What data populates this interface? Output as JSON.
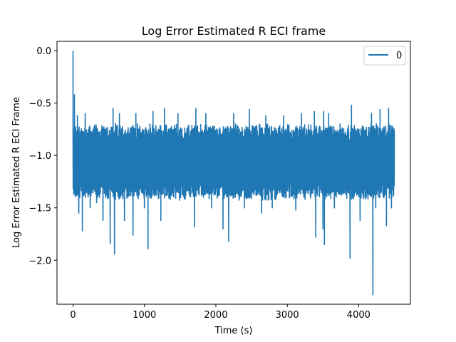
{
  "chart_data": {
    "type": "line",
    "title": "Log Error Estimated R ECI frame",
    "xlabel": "Time (s)",
    "ylabel": "Log Error Estimated R ECI Frame",
    "xlim": [
      -225,
      4725
    ],
    "ylim": [
      -2.42,
      0.09
    ],
    "xticks": [
      0,
      1000,
      2000,
      3000,
      4000
    ],
    "xtick_labels": [
      "0",
      "1000",
      "2000",
      "3000",
      "4000"
    ],
    "yticks": [
      0.0,
      -0.5,
      -1.0,
      -1.5,
      -2.0
    ],
    "ytick_labels": [
      "0.0",
      "−0.5",
      "−1.0",
      "−1.5",
      "−2.0"
    ],
    "grid": false,
    "legend": "top-right",
    "color": "#1f77b4",
    "series": [
      {
        "name": "0",
        "x_start": 0,
        "x_end": 4500,
        "band_low_typical": -1.4,
        "band_high_typical": -0.72,
        "points": [
          [
            0,
            0.0
          ],
          [
            10,
            -1.0
          ],
          [
            20,
            -0.42
          ],
          [
            30,
            -1.3
          ],
          [
            60,
            -0.62
          ],
          [
            80,
            -1.55
          ],
          [
            130,
            -1.72
          ],
          [
            170,
            -0.6
          ],
          [
            240,
            -1.5
          ],
          [
            330,
            -1.45
          ],
          [
            420,
            -1.62
          ],
          [
            520,
            -1.84
          ],
          [
            560,
            -0.55
          ],
          [
            580,
            -1.94
          ],
          [
            650,
            -0.6
          ],
          [
            720,
            -1.62
          ],
          [
            840,
            -1.76
          ],
          [
            880,
            -0.6
          ],
          [
            1000,
            -1.5
          ],
          [
            1050,
            -1.89
          ],
          [
            1120,
            -0.58
          ],
          [
            1230,
            -1.62
          ],
          [
            1280,
            -0.55
          ],
          [
            1470,
            -0.6
          ],
          [
            1700,
            -1.68
          ],
          [
            1720,
            -0.55
          ],
          [
            1860,
            -0.6
          ],
          [
            1940,
            -1.5
          ],
          [
            2100,
            -1.7
          ],
          [
            2180,
            -1.82
          ],
          [
            2250,
            -0.6
          ],
          [
            2400,
            -1.5
          ],
          [
            2470,
            -0.56
          ],
          [
            2640,
            -1.55
          ],
          [
            2700,
            -0.62
          ],
          [
            2790,
            -1.5
          ],
          [
            2950,
            -0.62
          ],
          [
            3120,
            -1.52
          ],
          [
            3200,
            -0.6
          ],
          [
            3380,
            -0.58
          ],
          [
            3400,
            -1.78
          ],
          [
            3500,
            -1.7
          ],
          [
            3510,
            -0.58
          ],
          [
            3520,
            -1.85
          ],
          [
            3580,
            -0.6
          ],
          [
            3660,
            -1.5
          ],
          [
            3880,
            -1.98
          ],
          [
            3900,
            -0.52
          ],
          [
            4020,
            -1.62
          ],
          [
            4180,
            -0.6
          ],
          [
            4200,
            -2.33
          ],
          [
            4240,
            -1.5
          ],
          [
            4300,
            -0.56
          ],
          [
            4390,
            -1.67
          ],
          [
            4420,
            -0.55
          ],
          [
            4460,
            -1.5
          ],
          [
            4500,
            -1.05
          ]
        ]
      }
    ]
  }
}
